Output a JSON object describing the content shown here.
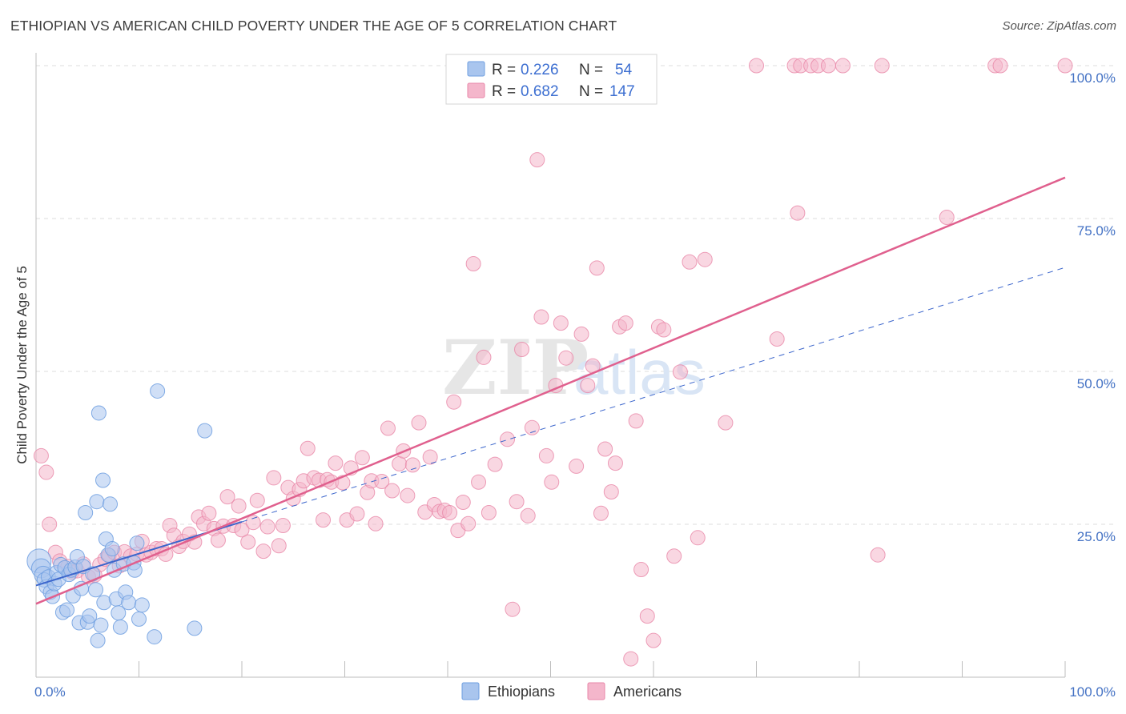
{
  "chart_data": {
    "type": "scatter",
    "title": "ETHIOPIAN VS AMERICAN CHILD POVERTY UNDER THE AGE OF 5 CORRELATION CHART",
    "source": "Source: ZipAtlas.com",
    "ylabel": "Child Poverty Under the Age of 5",
    "xlim": [
      0,
      100
    ],
    "ylim": [
      0,
      100
    ],
    "y_ticks": [
      {
        "value": 25,
        "label": "25.0%"
      },
      {
        "value": 50,
        "label": "50.0%"
      },
      {
        "value": 75,
        "label": "75.0%"
      },
      {
        "value": 100,
        "label": "100.0%"
      }
    ],
    "x_tick_labels": {
      "left": "0.0%",
      "right": "100.0%"
    },
    "grid": true,
    "watermark": {
      "zip": "ZIP",
      "atlas": "atlas"
    },
    "stats": [
      {
        "r_label": "R =",
        "r": "0.226",
        "n_label": "N =",
        "n": "54"
      },
      {
        "r_label": "R =",
        "r": "0.682",
        "n_label": "N =",
        "n": "147"
      }
    ],
    "colors": {
      "ethiopians_fill": "#a9c5ee",
      "ethiopians_stroke": "#6f9fe0",
      "americans_fill": "#f4b6cb",
      "americans_stroke": "#e887a8",
      "blue_line": "#3c66cc",
      "pink_line": "#e0608e",
      "tick_blue": "#4472c4"
    },
    "series": [
      {
        "name": "Ethiopians",
        "trend": {
          "x0": 0,
          "y0": 15.0,
          "x1": 100,
          "y1": 67.0,
          "solid_until": 20
        },
        "points": [
          [
            0.3,
            19.0
          ],
          [
            0.5,
            17.8
          ],
          [
            0.7,
            16.7
          ],
          [
            0.8,
            15.9
          ],
          [
            1.0,
            14.8
          ],
          [
            1.2,
            16.4
          ],
          [
            1.4,
            13.9
          ],
          [
            1.6,
            13.2
          ],
          [
            1.8,
            15.3
          ],
          [
            2.0,
            17.1
          ],
          [
            2.2,
            16.0
          ],
          [
            2.4,
            18.4
          ],
          [
            2.6,
            10.6
          ],
          [
            2.8,
            17.9
          ],
          [
            3.0,
            11.0
          ],
          [
            3.2,
            16.8
          ],
          [
            3.4,
            17.5
          ],
          [
            3.6,
            13.3
          ],
          [
            3.8,
            18.0
          ],
          [
            4.0,
            19.7
          ],
          [
            4.2,
            8.9
          ],
          [
            4.4,
            14.5
          ],
          [
            4.6,
            18.1
          ],
          [
            4.8,
            26.9
          ],
          [
            5.0,
            9.0
          ],
          [
            5.2,
            10.0
          ],
          [
            5.5,
            16.9
          ],
          [
            5.8,
            14.3
          ],
          [
            5.9,
            28.7
          ],
          [
            6.0,
            6.0
          ],
          [
            6.1,
            43.2
          ],
          [
            6.3,
            8.5
          ],
          [
            6.5,
            32.2
          ],
          [
            6.6,
            12.2
          ],
          [
            6.8,
            22.6
          ],
          [
            7.0,
            20.0
          ],
          [
            7.2,
            28.3
          ],
          [
            7.4,
            21.0
          ],
          [
            7.6,
            17.5
          ],
          [
            7.8,
            12.8
          ],
          [
            8.0,
            10.5
          ],
          [
            8.2,
            8.2
          ],
          [
            8.5,
            18.5
          ],
          [
            8.7,
            13.9
          ],
          [
            9.0,
            12.2
          ],
          [
            9.5,
            18.7
          ],
          [
            9.6,
            17.5
          ],
          [
            9.8,
            21.9
          ],
          [
            10.0,
            9.5
          ],
          [
            10.3,
            11.8
          ],
          [
            11.5,
            6.6
          ],
          [
            11.8,
            46.8
          ],
          [
            15.4,
            8.0
          ],
          [
            16.4,
            40.3
          ]
        ],
        "sizes": [
          26,
          20,
          18,
          14,
          14,
          14,
          14,
          14,
          14,
          14,
          14,
          14,
          14,
          14,
          14,
          14,
          14,
          14,
          14,
          14,
          14,
          14,
          14,
          14,
          14,
          14,
          14,
          14,
          14,
          14,
          14,
          14,
          14,
          14,
          14,
          14,
          14,
          14,
          14,
          14,
          14,
          14,
          14,
          14,
          14,
          14,
          14,
          14,
          14,
          14,
          14,
          14,
          14,
          14
        ]
      },
      {
        "name": "Americans",
        "trend": {
          "x0": 0,
          "y0": 12.0,
          "x1": 100,
          "y1": 81.7
        },
        "points": [
          [
            0.5,
            36.2
          ],
          [
            1.0,
            33.5
          ],
          [
            1.3,
            25.0
          ],
          [
            1.9,
            20.4
          ],
          [
            2.3,
            19.0
          ],
          [
            3.1,
            18.1
          ],
          [
            3.5,
            17.2
          ],
          [
            4.0,
            17.4
          ],
          [
            4.6,
            18.5
          ],
          [
            5.1,
            16.4
          ],
          [
            5.7,
            16.7
          ],
          [
            6.2,
            18.4
          ],
          [
            6.7,
            19.3
          ],
          [
            7.1,
            19.9
          ],
          [
            7.6,
            20.4
          ],
          [
            8.1,
            18.2
          ],
          [
            8.6,
            20.5
          ],
          [
            9.2,
            19.8
          ],
          [
            9.8,
            20.1
          ],
          [
            10.3,
            22.2
          ],
          [
            10.7,
            20.0
          ],
          [
            11.2,
            20.4
          ],
          [
            11.7,
            21.0
          ],
          [
            12.2,
            21.0
          ],
          [
            12.6,
            20.1
          ],
          [
            13.0,
            24.8
          ],
          [
            13.4,
            23.2
          ],
          [
            13.9,
            21.4
          ],
          [
            14.3,
            22.2
          ],
          [
            14.9,
            23.4
          ],
          [
            15.4,
            22.1
          ],
          [
            15.8,
            26.2
          ],
          [
            16.3,
            25.1
          ],
          [
            16.8,
            26.8
          ],
          [
            17.3,
            24.3
          ],
          [
            17.7,
            22.4
          ],
          [
            18.2,
            24.7
          ],
          [
            18.6,
            29.5
          ],
          [
            19.2,
            24.8
          ],
          [
            19.7,
            28.0
          ],
          [
            20.0,
            24.1
          ],
          [
            20.6,
            22.1
          ],
          [
            21.1,
            25.3
          ],
          [
            21.5,
            28.9
          ],
          [
            22.1,
            20.6
          ],
          [
            22.5,
            24.6
          ],
          [
            23.1,
            32.6
          ],
          [
            23.6,
            21.5
          ],
          [
            24.0,
            24.8
          ],
          [
            24.5,
            31.0
          ],
          [
            25.0,
            29.2
          ],
          [
            25.6,
            30.7
          ],
          [
            26.0,
            32.1
          ],
          [
            26.4,
            37.4
          ],
          [
            27.0,
            32.6
          ],
          [
            27.5,
            32.2
          ],
          [
            27.9,
            25.7
          ],
          [
            28.3,
            32.3
          ],
          [
            28.7,
            31.9
          ],
          [
            29.1,
            35.0
          ],
          [
            29.8,
            31.8
          ],
          [
            30.2,
            25.7
          ],
          [
            30.6,
            34.2
          ],
          [
            31.2,
            26.7
          ],
          [
            31.7,
            35.9
          ],
          [
            32.2,
            30.2
          ],
          [
            32.6,
            32.1
          ],
          [
            33.0,
            25.1
          ],
          [
            33.6,
            32.0
          ],
          [
            34.2,
            40.7
          ],
          [
            34.6,
            30.5
          ],
          [
            35.3,
            34.9
          ],
          [
            35.7,
            37.0
          ],
          [
            36.1,
            29.7
          ],
          [
            36.6,
            34.7
          ],
          [
            37.2,
            41.6
          ],
          [
            37.8,
            27.0
          ],
          [
            38.3,
            36.0
          ],
          [
            38.7,
            28.2
          ],
          [
            39.2,
            27.1
          ],
          [
            39.7,
            27.3
          ],
          [
            40.2,
            26.9
          ],
          [
            40.6,
            45.0
          ],
          [
            41.0,
            24.0
          ],
          [
            41.5,
            28.6
          ],
          [
            42.0,
            25.1
          ],
          [
            42.5,
            67.6
          ],
          [
            43.0,
            31.9
          ],
          [
            43.5,
            52.3
          ],
          [
            44.0,
            26.9
          ],
          [
            44.6,
            34.8
          ],
          [
            45.0,
            100.0
          ],
          [
            45.4,
            95.5
          ],
          [
            45.8,
            38.9
          ],
          [
            46.3,
            11.1
          ],
          [
            46.7,
            28.7
          ],
          [
            47.2,
            53.6
          ],
          [
            47.8,
            26.4
          ],
          [
            48.2,
            40.8
          ],
          [
            48.7,
            84.6
          ],
          [
            49.1,
            58.9
          ],
          [
            49.6,
            36.2
          ],
          [
            50.1,
            31.9
          ],
          [
            50.5,
            47.7
          ],
          [
            51.0,
            57.9
          ],
          [
            51.5,
            52.2
          ],
          [
            52.0,
            100.0
          ],
          [
            52.5,
            34.5
          ],
          [
            53.0,
            56.1
          ],
          [
            53.6,
            47.7
          ],
          [
            54.1,
            50.9
          ],
          [
            54.5,
            66.9
          ],
          [
            54.9,
            26.8
          ],
          [
            55.3,
            37.3
          ],
          [
            55.9,
            30.3
          ],
          [
            56.3,
            35.0
          ],
          [
            56.7,
            57.3
          ],
          [
            57.3,
            57.9
          ],
          [
            57.8,
            3.0
          ],
          [
            58.3,
            41.9
          ],
          [
            58.8,
            17.6
          ],
          [
            59.4,
            10.0
          ],
          [
            60.0,
            6.0
          ],
          [
            60.5,
            57.3
          ],
          [
            61.0,
            56.8
          ],
          [
            62.0,
            19.8
          ],
          [
            62.6,
            49.9
          ],
          [
            63.5,
            67.9
          ],
          [
            64.3,
            22.8
          ],
          [
            65.0,
            68.3
          ],
          [
            67.0,
            41.6
          ],
          [
            70.0,
            100.0
          ],
          [
            72.0,
            55.3
          ],
          [
            73.7,
            100.0
          ],
          [
            74.0,
            75.9
          ],
          [
            74.3,
            100.0
          ],
          [
            75.3,
            100.0
          ],
          [
            76.0,
            100.0
          ],
          [
            77.0,
            100.0
          ],
          [
            78.4,
            100.0
          ],
          [
            82.2,
            100.0
          ],
          [
            81.8,
            20.0
          ],
          [
            88.5,
            75.2
          ],
          [
            93.2,
            100.0
          ],
          [
            93.7,
            100.0
          ],
          [
            100.0,
            100.0
          ]
        ],
        "sizes": [
          14
        ]
      }
    ]
  },
  "legend": {
    "items": [
      {
        "label": "Ethiopians"
      },
      {
        "label": "Americans"
      }
    ]
  }
}
